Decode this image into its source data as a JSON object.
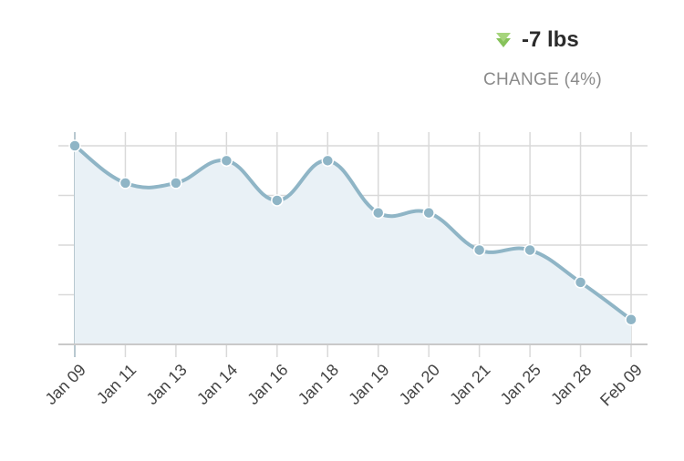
{
  "summary": {
    "arrow_icon": "down-arrow-icon",
    "arrow_color": "#86c25a",
    "delta": "-7 lbs",
    "label": "CHANGE (4%)"
  },
  "chart_data": {
    "type": "area",
    "categories": [
      "Jan 09",
      "Jan 11",
      "Jan 13",
      "Jan 14",
      "Jan 16",
      "Jan 18",
      "Jan 19",
      "Jan 20",
      "Jan 21",
      "Jan 25",
      "Jan 28",
      "Feb 09"
    ],
    "values": [
      8.0,
      6.5,
      6.5,
      7.4,
      5.8,
      7.4,
      5.3,
      5.3,
      3.8,
      3.8,
      2.5,
      1.0
    ],
    "ylim": [
      0,
      8
    ],
    "grid": true,
    "y_tick_labels": false,
    "colors": {
      "line": "#8fb5c6",
      "fill": "#e9f1f6",
      "point": "#8fb5c6",
      "grid": "#d9d9d9"
    }
  }
}
